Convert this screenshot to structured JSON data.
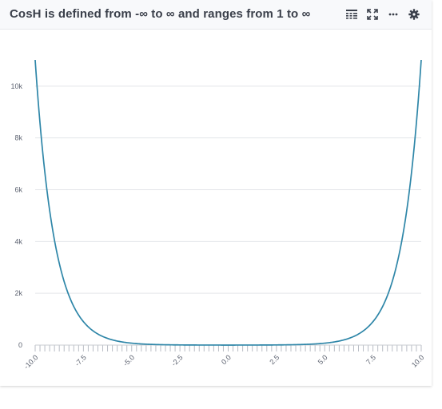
{
  "panel": {
    "title": "CosH is defined from -∞ to ∞ and ranges from 1 to ∞"
  },
  "toolbar": {
    "icons": [
      "table-icon",
      "expand-icon",
      "more-icon",
      "gear-icon"
    ]
  },
  "colors": {
    "line": "#2e86a8",
    "grid": "#e3e5e9",
    "axis_text": "#5c6270",
    "header_bg": "#f8f9fb"
  },
  "chart_data": {
    "type": "line",
    "function": "cosh(x)",
    "x": [
      -10,
      -9.5,
      -9,
      -8.5,
      -8,
      -7.5,
      -7,
      -6.5,
      -6,
      -5.5,
      -5,
      -4.5,
      -4,
      -3.5,
      -3,
      -2.5,
      -2,
      -1.5,
      -1,
      -0.5,
      0,
      0.5,
      1,
      1.5,
      2,
      2.5,
      3,
      3.5,
      4,
      4.5,
      5,
      5.5,
      6,
      6.5,
      7,
      7.5,
      8,
      8.5,
      9,
      9.5,
      10
    ],
    "y": [
      11013.2,
      6679.9,
      4051.5,
      2457.4,
      1490.5,
      904.0,
      548.3,
      332.6,
      201.7,
      122.3,
      74.2,
      45.0,
      27.3,
      16.6,
      10.1,
      6.1,
      3.8,
      2.4,
      1.5,
      1.1,
      1.0,
      1.1,
      1.5,
      2.4,
      3.8,
      6.1,
      10.1,
      16.6,
      27.3,
      45.0,
      74.2,
      122.3,
      201.7,
      332.6,
      548.3,
      904.0,
      1490.5,
      2457.4,
      4051.5,
      6679.9,
      11013.2
    ],
    "xlim": [
      -10,
      10
    ],
    "ylim": [
      0,
      11013.2
    ],
    "x_tick_labels": [
      "-10.0",
      "-7.5",
      "-5.0",
      "-2.5",
      "0.0",
      "2.5",
      "5.0",
      "7.5",
      "10.0"
    ],
    "x_tick_values": [
      -10,
      -7.5,
      -5,
      -2.5,
      0,
      2.5,
      5,
      7.5,
      10
    ],
    "y_tick_labels": [
      "0",
      "2k",
      "4k",
      "6k",
      "8k",
      "10k"
    ],
    "y_tick_values": [
      0,
      2000,
      4000,
      6000,
      8000,
      10000
    ],
    "grid": true,
    "legend": "none"
  }
}
